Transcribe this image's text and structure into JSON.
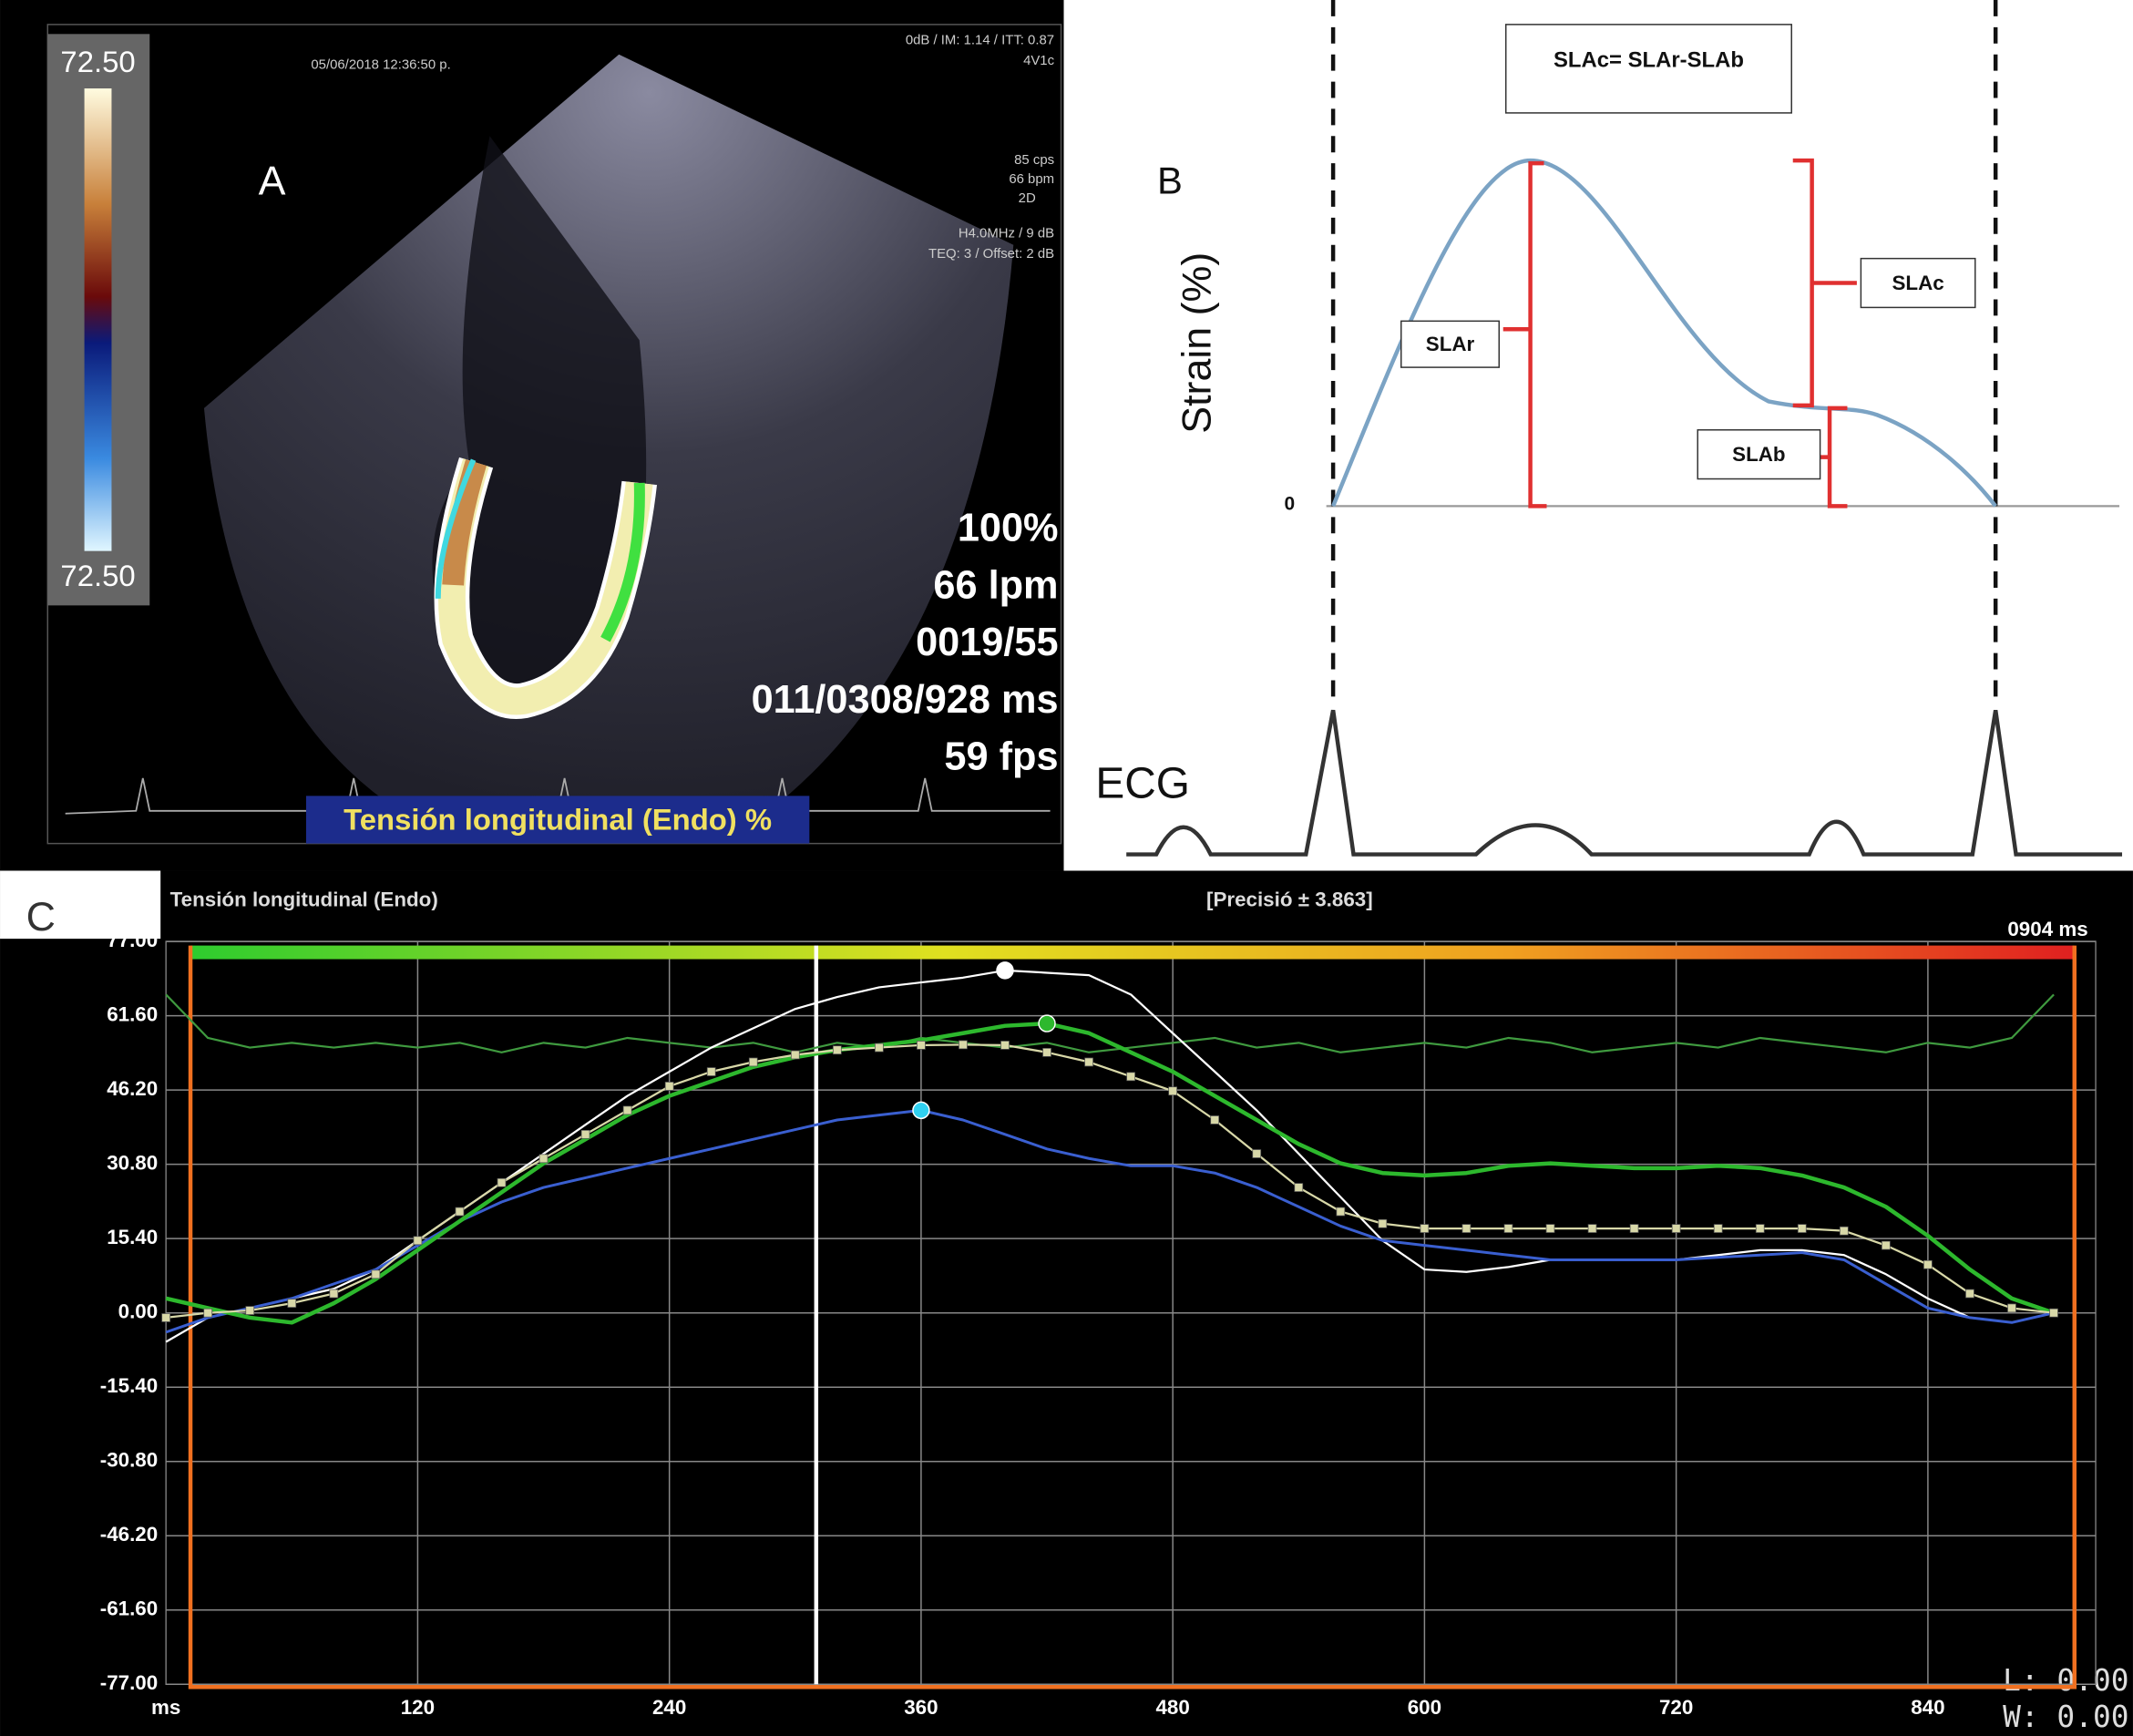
{
  "panel_a": {
    "label": "A",
    "scale_top": "72.50",
    "scale_bottom": "72.50",
    "date": "05/06/2018 12:36:50 p.",
    "settings": "0dB / IM: 1.14 / ITT: 0.87",
    "probe": "4V1c",
    "info": [
      "85 cps",
      "66 bpm",
      "2D",
      "H4.0MHz / 9 dB",
      "TEQ: 3 / Offset: 2 dB"
    ],
    "readout": [
      "100%",
      "66 lpm",
      "0019/55",
      "011/0308/928 ms",
      "59 fps"
    ],
    "caption": "Tensión longitudinal (Endo) %"
  },
  "panel_b": {
    "label": "B",
    "formula": "SLAc= SLAr-SLAb",
    "y_label": "Strain (%)",
    "zero": "0",
    "slar": "SLAr",
    "slac": "SLAc",
    "slab": "SLAb",
    "ecg": "ECG"
  },
  "panel_c_label": "C",
  "chart_data": {
    "type": "line",
    "title": "Tensión longitudinal (Endo)",
    "subtitle": "[Precisió ± 3.863]",
    "time_label": "0904 ms",
    "x_label": "ms",
    "readout": [
      "L: 0.00",
      "W: 0.00"
    ],
    "x": [
      0,
      20,
      40,
      60,
      80,
      100,
      120,
      140,
      160,
      180,
      200,
      220,
      240,
      260,
      280,
      300,
      320,
      340,
      360,
      380,
      400,
      420,
      440,
      460,
      480,
      500,
      520,
      540,
      560,
      580,
      600,
      620,
      640,
      660,
      680,
      700,
      720,
      740,
      760,
      780,
      800,
      820,
      840,
      860,
      880,
      900
    ],
    "xlim": [
      0,
      920
    ],
    "ylim": [
      -77,
      77
    ],
    "xticks": [
      120,
      240,
      360,
      480,
      600,
      720,
      840
    ],
    "yticks": [
      {
        "value": 77,
        "label": "77.00"
      },
      {
        "value": 61.6,
        "label": "61.60"
      },
      {
        "value": 46.2,
        "label": "46.20"
      },
      {
        "value": 30.8,
        "label": "30.80"
      },
      {
        "value": 15.4,
        "label": "15.40"
      },
      {
        "value": 0,
        "label": "0.00"
      },
      {
        "value": -15.4,
        "label": "-15.40"
      },
      {
        "value": -30.8,
        "label": "-30.80"
      },
      {
        "value": -46.2,
        "label": "-46.20"
      },
      {
        "value": -61.6,
        "label": "-61.60"
      },
      {
        "value": -77,
        "label": "-77.00"
      }
    ],
    "grid": true,
    "cursor_x": 310,
    "series": [
      {
        "color": "#3f9a3f",
        "width": 1.5,
        "values": [
          66,
          57,
          55,
          56,
          55,
          56,
          55,
          56,
          54,
          56,
          55,
          57,
          56,
          55,
          56,
          54,
          56,
          55,
          57,
          56,
          55,
          56,
          54,
          55,
          56,
          57,
          55,
          56,
          54,
          55,
          56,
          55,
          57,
          56,
          54,
          55,
          56,
          55,
          57,
          56,
          55,
          54,
          56,
          55,
          57,
          66
        ]
      },
      {
        "color": "#ffffff",
        "width": 1.5,
        "values": [
          -6,
          -1,
          1,
          3,
          5,
          9,
          15,
          21,
          27,
          33,
          39,
          45,
          50,
          55,
          59,
          63,
          65.5,
          67.5,
          68.5,
          69.5,
          71,
          70.5,
          70,
          66,
          58,
          50,
          42,
          33,
          24,
          15,
          9,
          8.5,
          9.5,
          11,
          11,
          11,
          11,
          12,
          13,
          13,
          12,
          8,
          3,
          -1,
          -2,
          0
        ],
        "peak_x": 400
      },
      {
        "color": "#3a5fd0",
        "width": 2,
        "values": [
          -4,
          -1,
          1,
          3,
          6,
          9,
          14,
          19,
          23,
          26,
          28,
          30,
          32,
          34,
          36,
          38,
          40,
          41,
          42,
          40,
          37,
          34,
          32,
          30.5,
          30.5,
          29,
          26,
          22,
          18,
          15,
          14,
          13,
          12,
          11,
          11,
          11,
          11,
          11.5,
          12,
          12.5,
          11,
          6,
          1,
          -1,
          -2,
          0
        ],
        "peak_x": 360
      },
      {
        "color": "#2db82d",
        "width": 3,
        "values": [
          3,
          1,
          -1,
          -2,
          2,
          7,
          13,
          19,
          25,
          31,
          36,
          41,
          45,
          48,
          51,
          53,
          54.5,
          55.5,
          56.5,
          58,
          59.5,
          60,
          58,
          54,
          50,
          45,
          40,
          35,
          31,
          29,
          28.5,
          29,
          30.5,
          31,
          30.5,
          30,
          30,
          30.5,
          30,
          28.5,
          26,
          22,
          16,
          9,
          3,
          0
        ],
        "peak_x": 420
      },
      {
        "color": "#d8d8a8",
        "width": 1.5,
        "markers": true,
        "values": [
          -1,
          0,
          0.5,
          2,
          4,
          8,
          15,
          21,
          27,
          32,
          37,
          42,
          47,
          50,
          52,
          53.5,
          54.5,
          55,
          55.5,
          55.6,
          55.5,
          54,
          52,
          49,
          46,
          40,
          33,
          26,
          21,
          18.5,
          17.5,
          17.5,
          17.5,
          17.5,
          17.5,
          17.5,
          17.5,
          17.5,
          17.5,
          17.5,
          17,
          14,
          10,
          4,
          1,
          0
        ]
      }
    ]
  }
}
